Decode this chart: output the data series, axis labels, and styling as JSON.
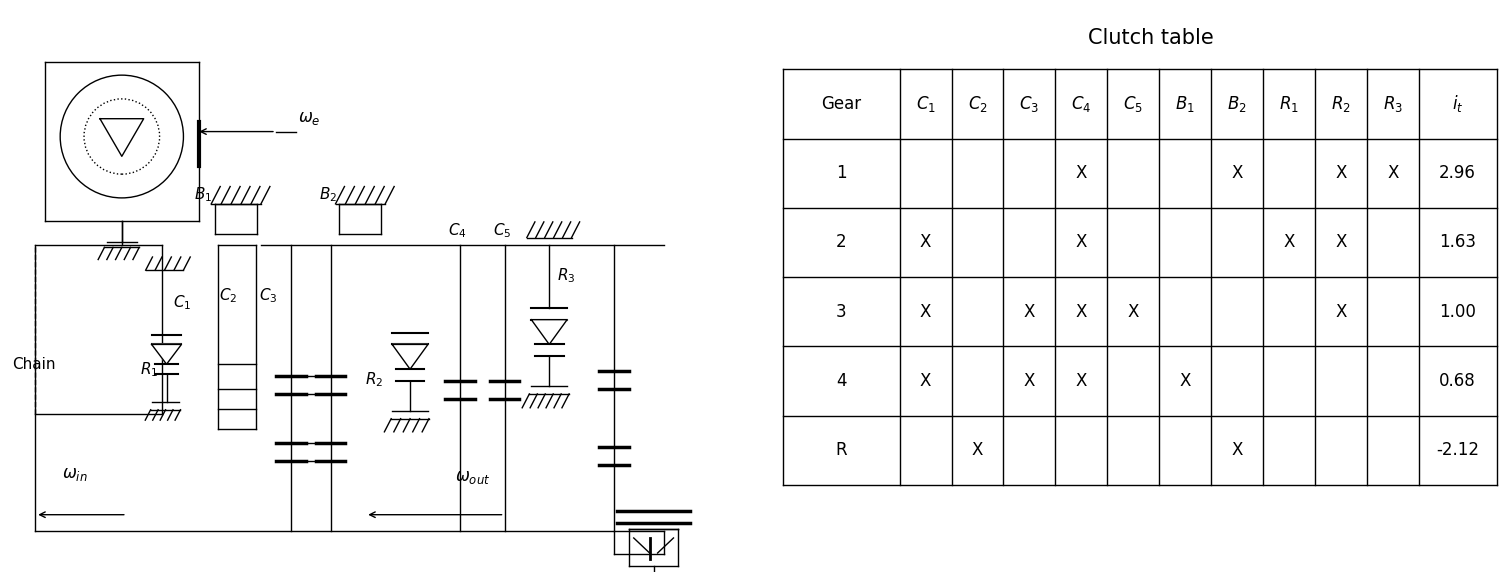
{
  "title": "Clutch table",
  "table_rows": [
    [
      "1",
      "",
      "",
      "",
      "X",
      "",
      "",
      "X",
      "",
      "X",
      "X",
      "2.96"
    ],
    [
      "2",
      "X",
      "",
      "",
      "X",
      "",
      "",
      "",
      "X",
      "X",
      "",
      "1.63"
    ],
    [
      "3",
      "X",
      "",
      "X",
      "X",
      "X",
      "",
      "",
      "",
      "X",
      "",
      "1.00"
    ],
    [
      "4",
      "X",
      "",
      "X",
      "X",
      "",
      "X",
      "",
      "",
      "",
      "",
      "0.68"
    ],
    [
      "R",
      "",
      "X",
      "",
      "",
      "",
      "",
      "X",
      "",
      "",
      "",
      "-2.12"
    ]
  ],
  "bg_color": "#ffffff",
  "line_color": "#000000"
}
